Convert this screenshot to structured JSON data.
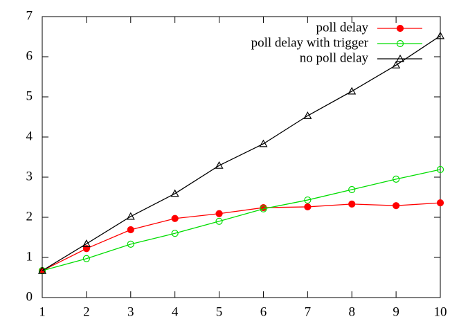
{
  "chart_data": {
    "type": "line",
    "x": [
      1,
      2,
      3,
      4,
      5,
      6,
      7,
      8,
      9,
      10
    ],
    "xlim": [
      1,
      10
    ],
    "xticks": [
      1,
      2,
      3,
      4,
      5,
      6,
      7,
      8,
      9,
      10
    ],
    "ylim": [
      0,
      7
    ],
    "yticks": [
      0,
      1,
      2,
      3,
      4,
      5,
      6,
      7
    ],
    "legend": "top-right",
    "series": [
      {
        "name": "poll delay",
        "color": "#ff0000",
        "marker": "circle-filled",
        "values": [
          0.67,
          1.22,
          1.69,
          1.97,
          2.09,
          2.24,
          2.26,
          2.33,
          2.29,
          2.36
        ]
      },
      {
        "name": "poll delay with trigger",
        "color": "#00dd00",
        "marker": "circle-open",
        "values": [
          0.67,
          0.97,
          1.33,
          1.6,
          1.9,
          2.21,
          2.43,
          2.69,
          2.95,
          3.19
        ]
      },
      {
        "name": "no poll delay",
        "color": "#000000",
        "marker": "triangle-open",
        "values": [
          0.67,
          1.34,
          2.02,
          2.59,
          3.29,
          3.83,
          4.53,
          5.14,
          5.79,
          6.52
        ]
      }
    ]
  }
}
